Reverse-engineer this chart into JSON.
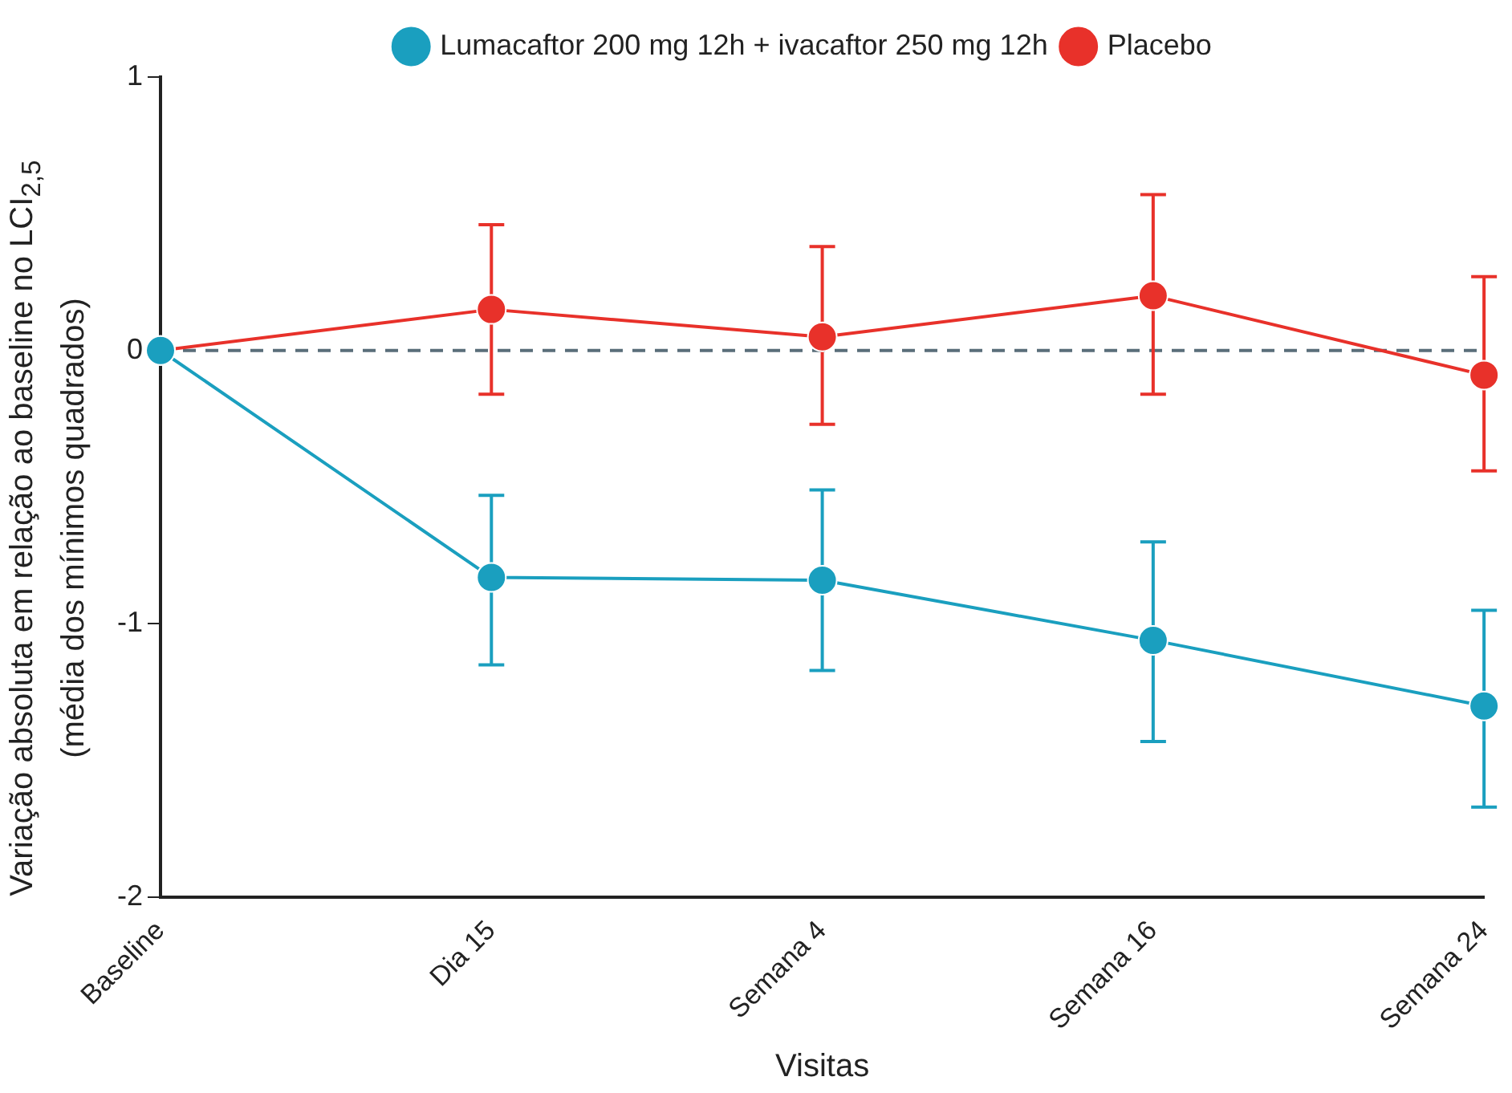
{
  "chart_data": {
    "type": "line",
    "xlabel": "Visitas",
    "ylabel": "Variação absoluta em relação ao baseline no LCI$_{2,5}$\n(média dos mínimos quadrados)",
    "categories": [
      "Baseline",
      "Dia 15",
      "Semana 4",
      "Semana 16",
      "Semana 24"
    ],
    "series": [
      {
        "name": "Lumacaftor 200 mg 12h + ivacaftor 250 mg 12h",
        "color": "#1a9fbf",
        "values": [
          0,
          -0.83,
          -0.84,
          -1.06,
          -1.3
        ],
        "errors": [
          null,
          [
            -1.15,
            -0.53
          ],
          [
            -1.17,
            -0.51
          ],
          [
            -1.43,
            -0.7
          ],
          [
            -1.67,
            -0.95
          ]
        ]
      },
      {
        "name": "Placebo",
        "color": "#e8312a",
        "values": [
          0,
          0.15,
          0.05,
          0.2,
          -0.09
        ],
        "errors": [
          null,
          [
            -0.16,
            0.46
          ],
          [
            -0.27,
            0.38
          ],
          [
            -0.16,
            0.57
          ],
          [
            -0.44,
            0.27
          ]
        ]
      }
    ],
    "ylim": [
      -2,
      1
    ],
    "yticks": [
      -2,
      -1,
      0,
      1
    ],
    "ref_lines": [
      {
        "axis": "y",
        "value": 0,
        "color": "#5a6e7a",
        "line_style": "dashed"
      }
    ],
    "grid": false,
    "legend": "top",
    "marker": "circle",
    "line_style": "solid"
  }
}
